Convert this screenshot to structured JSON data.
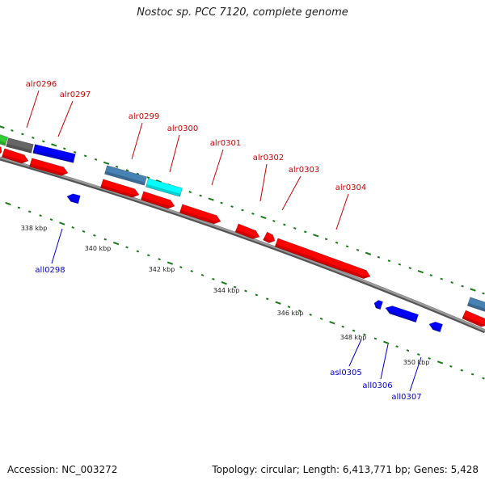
{
  "title": "Nostoc sp. PCC 7120, complete genome",
  "footer": {
    "accession": "Accession: NC_003272",
    "summary": "Topology: circular; Length: 6,413,771 bp; Genes: 5,428"
  },
  "scale_labels": [
    "338 kbp",
    "340 kbp",
    "342 kbp",
    "344 kbp",
    "346 kbp",
    "348 kbp",
    "350 kbp"
  ],
  "colors": {
    "forward_cds": "#ff0000",
    "reverse_cds": "#0000ff",
    "forward_label": "#cc0000",
    "reverse_label": "#0000cc",
    "backbone": "#888888",
    "tick": "#1a7a1a",
    "steelblue_feature": "#4682b4",
    "cyan_feature": "#00ffff",
    "green_feature": "#33cc33",
    "gray_feature": "#666666"
  },
  "genes": {
    "forward": [
      "alr0296",
      "alr0297",
      "alr0299",
      "alr0300",
      "alr0301",
      "alr0302",
      "alr0303",
      "alr0304"
    ],
    "reverse": [
      "all0298",
      "asl0305",
      "all0306",
      "all0307"
    ]
  }
}
